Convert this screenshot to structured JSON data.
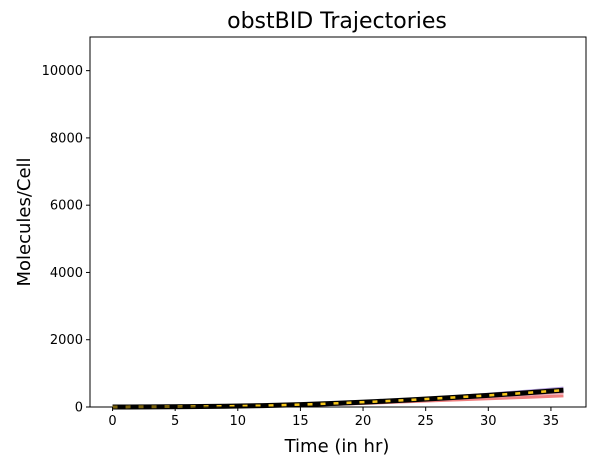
{
  "chart_data": {
    "type": "line",
    "title": "obstBID Trajectories",
    "xlabel": "Time (in hr)",
    "ylabel": "Molecules/Cell",
    "xlim": [
      -1.8,
      37.8
    ],
    "ylim": [
      0,
      11000
    ],
    "xticks": [
      0,
      5,
      10,
      15,
      20,
      25,
      30,
      35
    ],
    "yticks": [
      0,
      2000,
      4000,
      6000,
      8000,
      10000
    ],
    "grid": false,
    "legend": "none",
    "x": [
      0,
      3,
      6,
      9,
      12,
      15,
      18,
      21,
      24,
      27,
      30,
      33,
      36
    ],
    "series": [
      {
        "color": "#f08080",
        "width": 3,
        "dash": "",
        "values": [
          0,
          3,
          8,
          15,
          28,
          50,
          80,
          120,
          165,
          205,
          245,
          285,
          330
        ]
      },
      {
        "color": "#e8a0b0",
        "width": 3,
        "dash": "",
        "values": [
          0,
          4,
          10,
          20,
          38,
          65,
          105,
          150,
          200,
          250,
          310,
          370,
          430
        ]
      },
      {
        "color": "#b39ddb",
        "width": 3,
        "dash": "",
        "values": [
          0,
          5,
          12,
          25,
          45,
          78,
          120,
          170,
          230,
          300,
          380,
          470,
          560
        ]
      },
      {
        "color": "#000000",
        "width": 5,
        "dash": "",
        "values": [
          0,
          4,
          11,
          22,
          40,
          70,
          112,
          160,
          215,
          278,
          345,
          420,
          500
        ]
      },
      {
        "color": "#f5c518",
        "width": 2.5,
        "dash": "5,8",
        "values": [
          0,
          4,
          11,
          22,
          40,
          70,
          112,
          160,
          215,
          278,
          345,
          420,
          500
        ]
      }
    ]
  }
}
